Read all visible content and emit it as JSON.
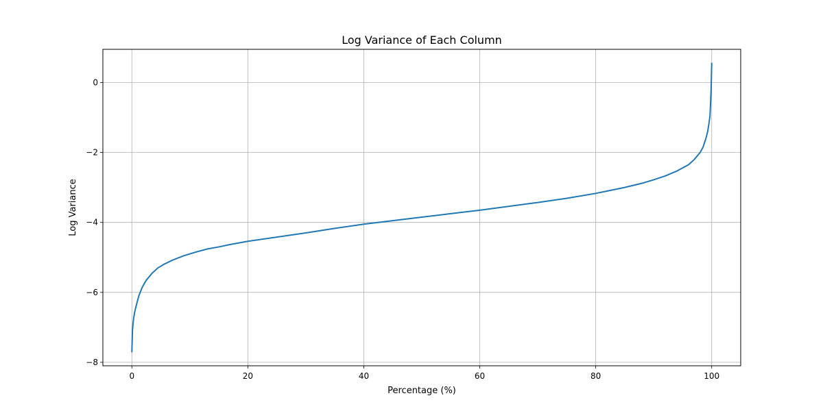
{
  "chart_data": {
    "type": "line",
    "title": "Log Variance of Each Column",
    "xlabel": "Percentage (%)",
    "ylabel": "Log Variance",
    "xlim": [
      -5,
      105
    ],
    "ylim": [
      -8.1,
      0.95
    ],
    "xticks": [
      0,
      20,
      40,
      60,
      80,
      100
    ],
    "yticks": [
      0,
      -2,
      -4,
      -6,
      -8
    ],
    "xtick_labels": [
      "0",
      "20",
      "40",
      "60",
      "80",
      "100"
    ],
    "ytick_labels": [
      "0",
      "−2",
      "−4",
      "−6",
      "−8"
    ],
    "grid": true,
    "line_color": "#1f77b4",
    "series": [
      {
        "x": [
          0,
          0.05,
          0.1,
          0.2,
          0.3,
          0.5,
          0.8,
          1.2,
          1.8,
          2.5,
          3.5,
          4.5,
          5.5,
          7,
          9,
          11,
          13,
          15,
          17,
          20,
          25,
          30,
          35,
          40,
          45,
          50,
          55,
          60,
          65,
          70,
          75,
          80,
          85,
          88,
          90,
          92,
          94,
          96,
          97,
          98,
          98.5,
          99,
          99.3,
          99.5,
          99.7,
          99.8,
          99.9,
          99.95,
          100
        ],
        "y": [
          -7.7,
          -7.4,
          -7.1,
          -6.9,
          -6.75,
          -6.55,
          -6.35,
          -6.1,
          -5.85,
          -5.65,
          -5.45,
          -5.3,
          -5.2,
          -5.08,
          -4.95,
          -4.85,
          -4.76,
          -4.7,
          -4.63,
          -4.54,
          -4.42,
          -4.3,
          -4.17,
          -4.05,
          -3.95,
          -3.85,
          -3.75,
          -3.65,
          -3.54,
          -3.43,
          -3.31,
          -3.17,
          -3.0,
          -2.88,
          -2.78,
          -2.67,
          -2.53,
          -2.35,
          -2.2,
          -2.0,
          -1.85,
          -1.6,
          -1.4,
          -1.2,
          -0.95,
          -0.6,
          -0.2,
          0.2,
          0.55
        ]
      }
    ]
  }
}
